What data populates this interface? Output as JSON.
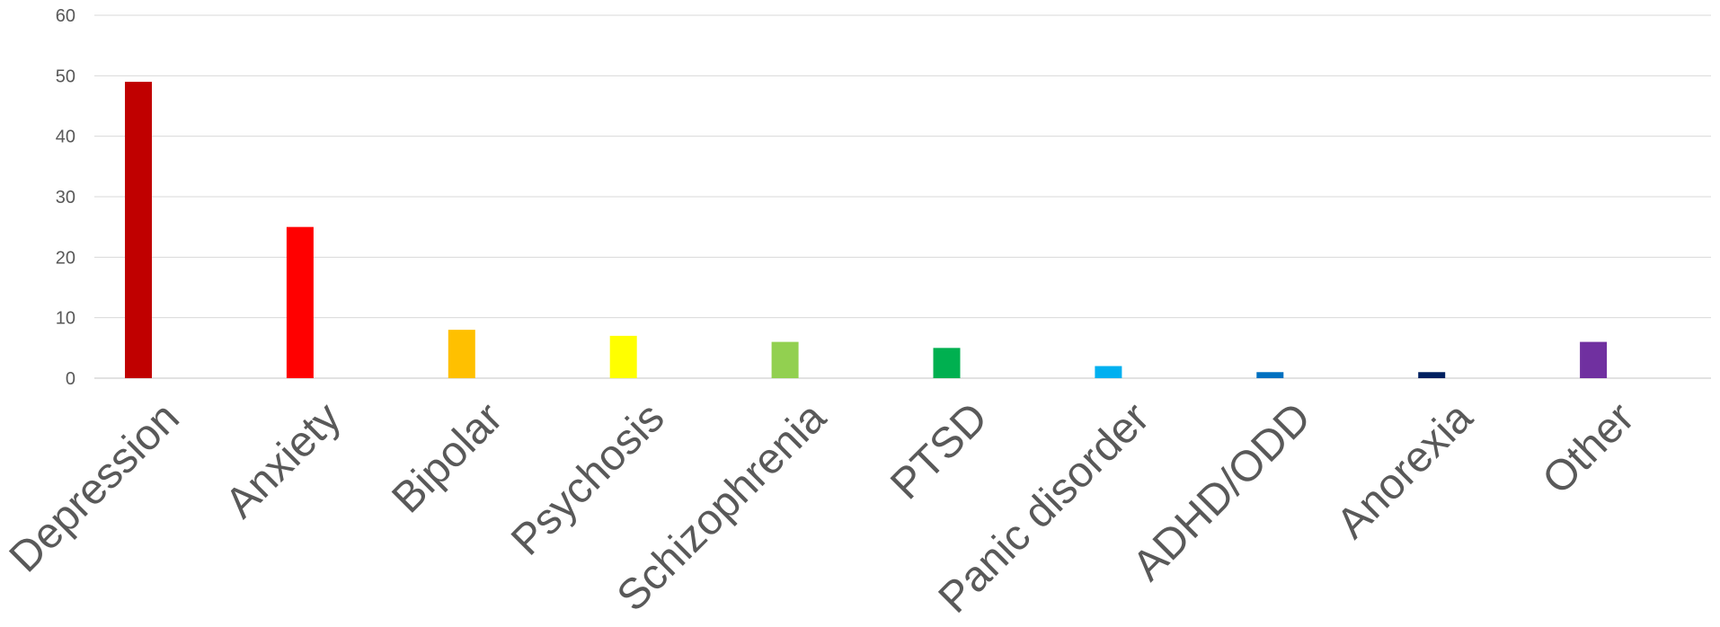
{
  "chart_data": {
    "type": "bar",
    "title": "",
    "xlabel": "",
    "ylabel": "",
    "ylim": [
      0,
      60
    ],
    "yticks": [
      0,
      10,
      20,
      30,
      40,
      50,
      60
    ],
    "grid": true,
    "legend": "none",
    "categories": [
      "Depression",
      "Anxiety",
      "Bipolar",
      "Psychosis",
      "Schizophrenia",
      "PTSD",
      "Panic disorder",
      "ADHD/ODD",
      "Anorexia",
      "Other"
    ],
    "values": [
      49,
      25,
      8,
      7,
      6,
      5,
      2,
      1,
      1,
      6
    ],
    "colors": [
      "#C00000",
      "#FF0000",
      "#FFC000",
      "#FFFF00",
      "#92D050",
      "#00B050",
      "#00B0F0",
      "#0070C0",
      "#002060",
      "#7030A0"
    ]
  }
}
